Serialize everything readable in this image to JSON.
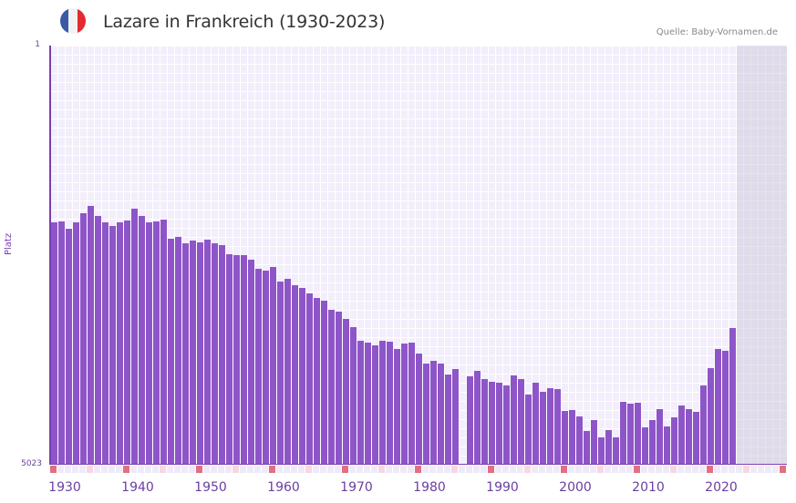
{
  "header": {
    "title": "Lazare in Frankreich (1930-2023)",
    "source": "Quelle: Baby-Vornamen.de",
    "flag_icon": "france-flag-icon",
    "flag_colors": [
      "#3a5aa8",
      "#f2f2f2",
      "#e42a2f"
    ]
  },
  "colors": {
    "bar": "#8e55c8",
    "axis": "#7b3fb2",
    "plot_bg": "#f3eefb",
    "decade_marker": "#e07080",
    "half_decade_marker": "#f5d8e0"
  },
  "chart_data": {
    "type": "bar",
    "title": "Lazare in Frankreich (1930-2023)",
    "xlabel": "",
    "ylabel": "Platz",
    "ylim": [
      5023,
      1
    ],
    "y_inverted": true,
    "y_ticks": [
      "1",
      "5023"
    ],
    "x_ticks": [
      "1930",
      "1940",
      "1950",
      "1960",
      "1970",
      "1980",
      "1990",
      "2000",
      "2010",
      "2020"
    ],
    "x_range": [
      1930,
      2030
    ],
    "grid": true,
    "legend": null,
    "categories": [
      1930,
      1931,
      1932,
      1933,
      1934,
      1935,
      1936,
      1937,
      1938,
      1939,
      1940,
      1941,
      1942,
      1943,
      1944,
      1945,
      1946,
      1947,
      1948,
      1949,
      1950,
      1951,
      1952,
      1953,
      1954,
      1955,
      1956,
      1957,
      1958,
      1959,
      1960,
      1961,
      1962,
      1963,
      1964,
      1965,
      1966,
      1967,
      1968,
      1969,
      1970,
      1971,
      1972,
      1973,
      1974,
      1975,
      1976,
      1977,
      1978,
      1979,
      1980,
      1981,
      1982,
      1983,
      1984,
      1985,
      1986,
      1987,
      1988,
      1989,
      1990,
      1991,
      1992,
      1993,
      1994,
      1995,
      1996,
      1997,
      1998,
      1999,
      2000,
      2001,
      2002,
      2003,
      2004,
      2005,
      2006,
      2007,
      2008,
      2009,
      2010,
      2011,
      2012,
      2013,
      2014,
      2015,
      2016,
      2017,
      2018,
      2019,
      2020,
      2021,
      2022,
      2023
    ],
    "series": [
      {
        "name": "Platz",
        "values": [
          2119,
          2108,
          2195,
          2119,
          2010,
          1922,
          2043,
          2119,
          2163,
          2119,
          2097,
          1955,
          2043,
          2119,
          2108,
          2086,
          2315,
          2294,
          2370,
          2337,
          2359,
          2326,
          2370,
          2392,
          2501,
          2512,
          2512,
          2567,
          2676,
          2698,
          2654,
          2829,
          2796,
          2872,
          2905,
          2970,
          3025,
          3058,
          3167,
          3189,
          3276,
          3375,
          3538,
          3560,
          3593,
          3538,
          3549,
          3636,
          3571,
          3560,
          3691,
          3811,
          3778,
          3811,
          3942,
          3877,
          null,
          3964,
          3898,
          3997,
          4030,
          4040,
          4073,
          3953,
          3997,
          4182,
          4040,
          4150,
          4106,
          4117,
          4379,
          4368,
          4444,
          4619,
          4488,
          4695,
          4608,
          4695,
          4270,
          4292,
          4281,
          4575,
          4488,
          4357,
          4564,
          4455,
          4313,
          4357,
          4390,
          4073,
          3866,
          3636,
          3658,
          3385
        ]
      }
    ]
  }
}
